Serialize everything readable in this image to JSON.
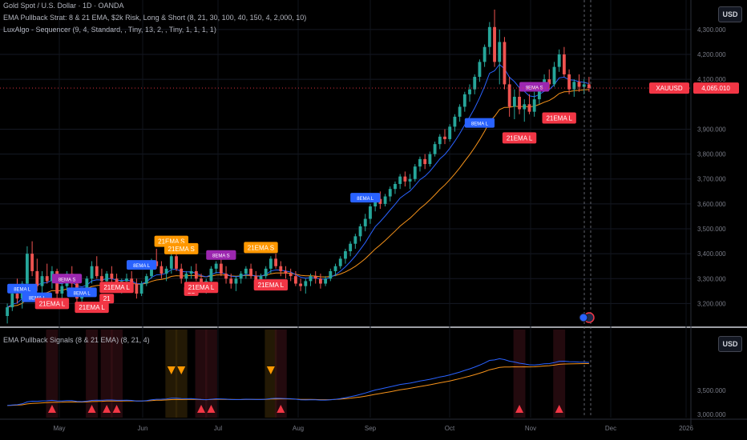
{
  "legend": {
    "line1": "Gold Spot / U.S. Dollar · 1D · OANDA",
    "line2": "EMA Pullback Strat: 8 & 21 EMA, $2k Risk, Long & Short (8, 21, 30, 100, 40, 150, 4, 2,000, 10)",
    "line3": "LuxAlgo - Sequencer (9, 4, Standard, , Tiny, 13, 2, , Tiny, 1, 1, 1, 1)",
    "line4": "EMA Pullback Signals (8 & 21 EMA) (8, 21, 4)"
  },
  "currency_button_top": "USD",
  "currency_button_bottom": "USD",
  "symbol_tag": "XAUUSD",
  "price_tag": "4,065.010",
  "colors": {
    "bg": "#000000",
    "up": "#26a69a",
    "down": "#ef5350",
    "ema8": "#2962ff",
    "ema21": "#f7931a",
    "tag_long": "#2962ff",
    "tag_21long": "#f23645",
    "tag_short": "#9c27b0",
    "tag_21short": "#ff9800"
  },
  "chart_data": {
    "type": "candlestick",
    "price_axis": {
      "min": 3150,
      "max": 4380,
      "tick_labels": [
        "4,300.000",
        "4,200.000",
        "4,100.000",
        "3,900.000",
        "3,800.000",
        "3,700.000",
        "3,600.000",
        "3,500.000",
        "3,400.000",
        "3,300.000",
        "3,200.000"
      ]
    },
    "time_axis_labels": [
      "May",
      "Jun",
      "Jul",
      "Aug",
      "Sep",
      "Oct",
      "Nov",
      "Dec",
      "2026"
    ],
    "indicator_axis_labels": [
      "3,500.000",
      "3,000.000"
    ],
    "price_line": 4065.01,
    "candles": [
      [
        3150,
        3200,
        3120,
        3185
      ],
      [
        3185,
        3260,
        3170,
        3240
      ],
      [
        3240,
        3300,
        3200,
        3220
      ],
      [
        3220,
        3290,
        3180,
        3280
      ],
      [
        3280,
        3430,
        3260,
        3400
      ],
      [
        3400,
        3450,
        3310,
        3330
      ],
      [
        3330,
        3380,
        3250,
        3270
      ],
      [
        3270,
        3330,
        3230,
        3310
      ],
      [
        3310,
        3360,
        3280,
        3290
      ],
      [
        3290,
        3350,
        3260,
        3330
      ],
      [
        3330,
        3340,
        3220,
        3240
      ],
      [
        3240,
        3290,
        3200,
        3270
      ],
      [
        3270,
        3330,
        3250,
        3320
      ],
      [
        3320,
        3350,
        3260,
        3280
      ],
      [
        3280,
        3300,
        3200,
        3220
      ],
      [
        3220,
        3260,
        3180,
        3250
      ],
      [
        3250,
        3310,
        3230,
        3300
      ],
      [
        3300,
        3370,
        3280,
        3350
      ],
      [
        3350,
        3390,
        3300,
        3310
      ],
      [
        3310,
        3340,
        3270,
        3290
      ],
      [
        3290,
        3330,
        3260,
        3320
      ],
      [
        3320,
        3350,
        3280,
        3300
      ],
      [
        3300,
        3320,
        3250,
        3270
      ],
      [
        3270,
        3300,
        3240,
        3290
      ],
      [
        3290,
        3320,
        3270,
        3300
      ],
      [
        3300,
        3330,
        3260,
        3280
      ],
      [
        3280,
        3300,
        3220,
        3240
      ],
      [
        3240,
        3290,
        3230,
        3280
      ],
      [
        3280,
        3320,
        3270,
        3310
      ],
      [
        3310,
        3380,
        3300,
        3370
      ],
      [
        3370,
        3420,
        3340,
        3350
      ],
      [
        3350,
        3370,
        3300,
        3320
      ],
      [
        3320,
        3350,
        3290,
        3340
      ],
      [
        3340,
        3400,
        3320,
        3390
      ],
      [
        3390,
        3420,
        3330,
        3340
      ],
      [
        3340,
        3360,
        3280,
        3300
      ],
      [
        3300,
        3330,
        3270,
        3320
      ],
      [
        3320,
        3350,
        3300,
        3330
      ],
      [
        3330,
        3360,
        3290,
        3300
      ],
      [
        3300,
        3320,
        3260,
        3280
      ],
      [
        3280,
        3300,
        3240,
        3290
      ],
      [
        3290,
        3350,
        3280,
        3340
      ],
      [
        3340,
        3370,
        3320,
        3360
      ],
      [
        3360,
        3380,
        3310,
        3320
      ],
      [
        3320,
        3350,
        3280,
        3300
      ],
      [
        3300,
        3320,
        3260,
        3280
      ],
      [
        3280,
        3310,
        3250,
        3300
      ],
      [
        3300,
        3330,
        3280,
        3320
      ],
      [
        3320,
        3350,
        3300,
        3340
      ],
      [
        3340,
        3360,
        3300,
        3310
      ],
      [
        3310,
        3330,
        3270,
        3290
      ],
      [
        3290,
        3320,
        3260,
        3310
      ],
      [
        3310,
        3350,
        3300,
        3340
      ],
      [
        3340,
        3390,
        3320,
        3380
      ],
      [
        3380,
        3400,
        3340,
        3350
      ],
      [
        3350,
        3370,
        3310,
        3330
      ],
      [
        3330,
        3350,
        3300,
        3320
      ],
      [
        3320,
        3340,
        3290,
        3310
      ],
      [
        3310,
        3330,
        3270,
        3280
      ],
      [
        3280,
        3300,
        3250,
        3270
      ],
      [
        3270,
        3300,
        3240,
        3290
      ],
      [
        3290,
        3320,
        3270,
        3310
      ],
      [
        3310,
        3330,
        3280,
        3300
      ],
      [
        3300,
        3320,
        3260,
        3280
      ],
      [
        3280,
        3310,
        3270,
        3300
      ],
      [
        3300,
        3340,
        3290,
        3330
      ],
      [
        3330,
        3360,
        3310,
        3350
      ],
      [
        3350,
        3390,
        3340,
        3380
      ],
      [
        3380,
        3420,
        3360,
        3410
      ],
      [
        3410,
        3450,
        3390,
        3440
      ],
      [
        3440,
        3480,
        3420,
        3470
      ],
      [
        3470,
        3520,
        3450,
        3510
      ],
      [
        3510,
        3560,
        3490,
        3540
      ],
      [
        3540,
        3600,
        3520,
        3590
      ],
      [
        3590,
        3640,
        3570,
        3620
      ],
      [
        3620,
        3650,
        3580,
        3600
      ],
      [
        3600,
        3640,
        3590,
        3630
      ],
      [
        3630,
        3670,
        3610,
        3660
      ],
      [
        3660,
        3690,
        3640,
        3680
      ],
      [
        3680,
        3720,
        3660,
        3710
      ],
      [
        3710,
        3730,
        3670,
        3690
      ],
      [
        3690,
        3720,
        3660,
        3700
      ],
      [
        3700,
        3760,
        3690,
        3750
      ],
      [
        3750,
        3790,
        3730,
        3780
      ],
      [
        3780,
        3800,
        3740,
        3760
      ],
      [
        3760,
        3810,
        3750,
        3800
      ],
      [
        3800,
        3850,
        3790,
        3840
      ],
      [
        3840,
        3880,
        3820,
        3870
      ],
      [
        3870,
        3900,
        3840,
        3860
      ],
      [
        3860,
        3920,
        3850,
        3910
      ],
      [
        3910,
        3960,
        3890,
        3950
      ],
      [
        3950,
        4000,
        3930,
        3990
      ],
      [
        3990,
        4050,
        3970,
        4040
      ],
      [
        4040,
        4080,
        4010,
        4060
      ],
      [
        4060,
        4120,
        4040,
        4110
      ],
      [
        4110,
        4180,
        4090,
        4170
      ],
      [
        4170,
        4240,
        4150,
        4230
      ],
      [
        4230,
        4330,
        4200,
        4310
      ],
      [
        4310,
        4380,
        4150,
        4170
      ],
      [
        4170,
        4300,
        4080,
        4250
      ],
      [
        4250,
        4270,
        4060,
        4080
      ],
      [
        4080,
        4110,
        3950,
        3990
      ],
      [
        3990,
        4060,
        3940,
        4030
      ],
      [
        4030,
        4070,
        3960,
        3980
      ],
      [
        3980,
        4020,
        3930,
        4000
      ],
      [
        4000,
        4040,
        3960,
        3970
      ],
      [
        3970,
        4050,
        3950,
        4020
      ],
      [
        4020,
        4080,
        4000,
        4070
      ],
      [
        4070,
        4120,
        4050,
        4100
      ],
      [
        4100,
        4140,
        4060,
        4080
      ],
      [
        4080,
        4170,
        4070,
        4150
      ],
      [
        4150,
        4220,
        4130,
        4200
      ],
      [
        4200,
        4230,
        4110,
        4120
      ],
      [
        4120,
        4140,
        4040,
        4060
      ],
      [
        4060,
        4100,
        4030,
        4090
      ],
      [
        4090,
        4120,
        4050,
        4070
      ],
      [
        4070,
        4100,
        4040,
        4080
      ],
      [
        4080,
        4110,
        4050,
        4065
      ]
    ],
    "signal_tags": [
      {
        "i": 3,
        "price": 3260,
        "text": "8EMA L",
        "kind": "long"
      },
      {
        "i": 6,
        "price": 3225,
        "text": "8EMA L",
        "kind": "long"
      },
      {
        "i": 9,
        "price": 3200,
        "text": "21EMA L",
        "kind": "21long"
      },
      {
        "i": 12,
        "price": 3300,
        "text": "8EMA S",
        "kind": "short"
      },
      {
        "i": 15,
        "price": 3245,
        "text": "8EMA L",
        "kind": "long"
      },
      {
        "i": 17,
        "price": 3185,
        "text": "21EMA L",
        "kind": "21long"
      },
      {
        "i": 20,
        "price": 3220,
        "text": "21",
        "kind": "21long"
      },
      {
        "i": 22,
        "price": 3265,
        "text": "21EMA L",
        "kind": "21long"
      },
      {
        "i": 27,
        "price": 3355,
        "text": "8EMA L",
        "kind": "long"
      },
      {
        "i": 33,
        "price": 3450,
        "text": "21EMA S",
        "kind": "21short"
      },
      {
        "i": 35,
        "price": 3420,
        "text": "21EMA S",
        "kind": "21short"
      },
      {
        "i": 37,
        "price": 3250,
        "text": "21",
        "kind": "21long"
      },
      {
        "i": 39,
        "price": 3265,
        "text": "21EMA L",
        "kind": "21long"
      },
      {
        "i": 43,
        "price": 3395,
        "text": "8EMA S",
        "kind": "short"
      },
      {
        "i": 51,
        "price": 3425,
        "text": "21EMA S",
        "kind": "21short"
      },
      {
        "i": 53,
        "price": 3275,
        "text": "21EMA L",
        "kind": "21long"
      },
      {
        "i": 72,
        "price": 3625,
        "text": "8EMA L",
        "kind": "long"
      },
      {
        "i": 95,
        "price": 3925,
        "text": "8EMA L",
        "kind": "long"
      },
      {
        "i": 103,
        "price": 3865,
        "text": "21EMA L",
        "kind": "21long"
      },
      {
        "i": 106,
        "price": 4070,
        "text": "8EMA S",
        "kind": "short"
      },
      {
        "i": 111,
        "price": 3945,
        "text": "21EMA L",
        "kind": "21long"
      }
    ],
    "indicator_triangles": [
      {
        "i": 9,
        "dir": "up"
      },
      {
        "i": 17,
        "dir": "up"
      },
      {
        "i": 20,
        "dir": "up"
      },
      {
        "i": 22,
        "dir": "up"
      },
      {
        "i": 33,
        "dir": "down"
      },
      {
        "i": 35,
        "dir": "down"
      },
      {
        "i": 39,
        "dir": "up"
      },
      {
        "i": 41,
        "dir": "up"
      },
      {
        "i": 53,
        "dir": "down"
      },
      {
        "i": 55,
        "dir": "up"
      },
      {
        "i": 103,
        "dir": "up"
      },
      {
        "i": 111,
        "dir": "up"
      }
    ]
  }
}
